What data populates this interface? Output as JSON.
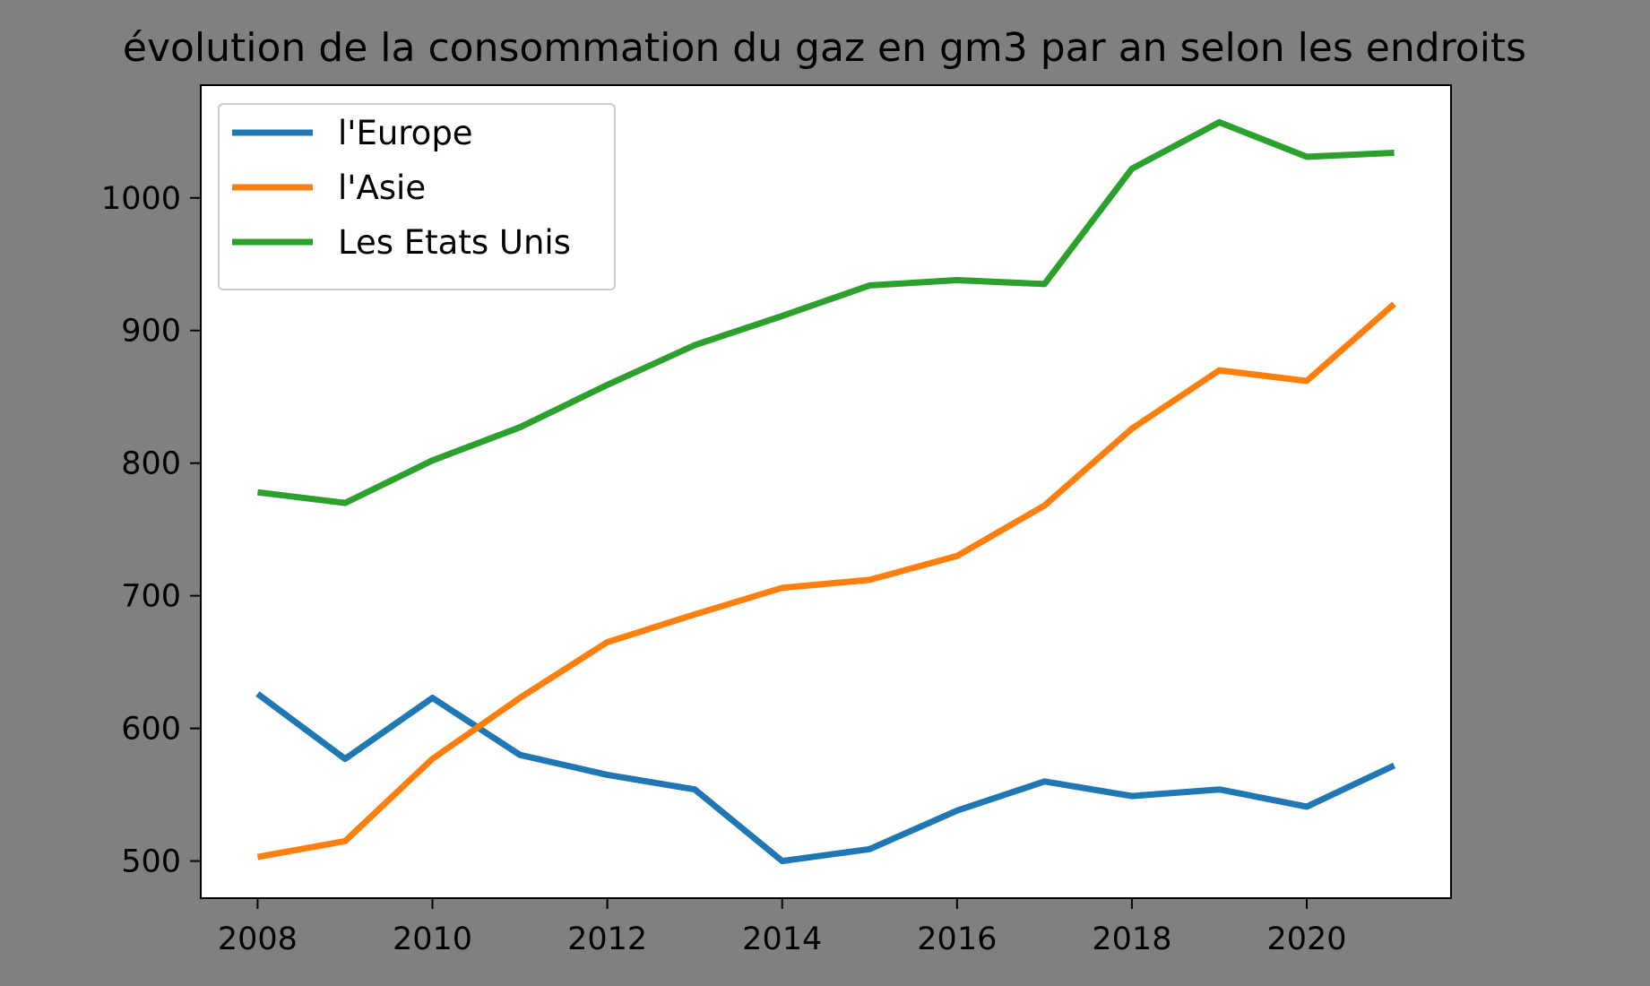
{
  "chart_data": {
    "type": "line",
    "title": "évolution de la consommation du gaz en gm3 par an selon les endroits",
    "xlabel": "",
    "ylabel": "",
    "x": [
      2008,
      2009,
      2010,
      2011,
      2012,
      2013,
      2014,
      2015,
      2016,
      2017,
      2018,
      2019,
      2020,
      2021
    ],
    "series": [
      {
        "name": "l'Europe",
        "color": "#1f77b4",
        "values": [
          626,
          577,
          623,
          580,
          565,
          554,
          500,
          509,
          538,
          560,
          549,
          554,
          541,
          572
        ]
      },
      {
        "name": "l'Asie",
        "color": "#ff7f0e",
        "values": [
          503,
          515,
          577,
          623,
          665,
          686,
          706,
          712,
          730,
          768,
          826,
          870,
          862,
          920
        ]
      },
      {
        "name": "Les Etats Unis",
        "color": "#2ca02c",
        "values": [
          778,
          770,
          802,
          827,
          859,
          889,
          911,
          934,
          938,
          935,
          1022,
          1057,
          1031,
          1034
        ]
      }
    ],
    "xticks": [
      2008,
      2010,
      2012,
      2014,
      2016,
      2018,
      2020
    ],
    "yticks": [
      500,
      600,
      700,
      800,
      900,
      1000
    ],
    "xlim": [
      2007.35,
      2021.65
    ],
    "ylim": [
      472,
      1085
    ],
    "grid": false,
    "legend_position": "top-left"
  }
}
